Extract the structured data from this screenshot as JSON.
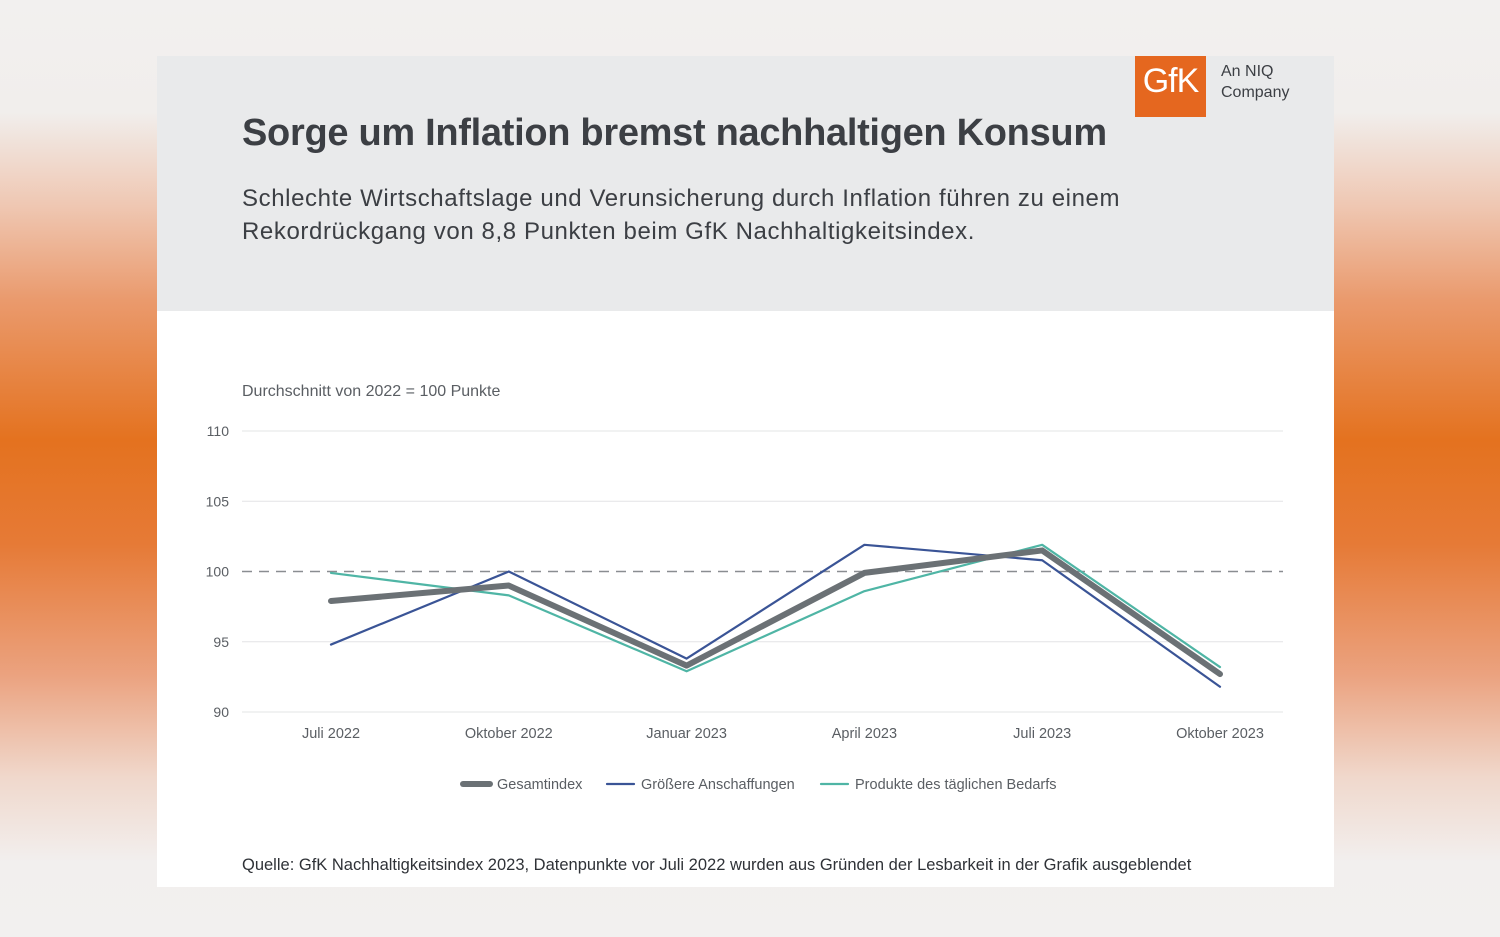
{
  "brand": {
    "logo_text": "GfK",
    "company_line1": "An NIQ",
    "company_line2": "Company",
    "accent_color": "#e5671f"
  },
  "header": {
    "title": "Sorge um Inflation bremst nachhaltigen Konsum",
    "subtitle": "Schlechte Wirtschaftslage und Verunsicherung durch Inflation führen zu einem Rekordrückgang von 8,8 Punkten beim GfK Nachhaltigkeitsindex."
  },
  "chart_data": {
    "type": "line",
    "title": "",
    "ylabel": "Durchschnitt von 2022 = 100 Punkte",
    "xlabel": "",
    "categories": [
      "Juli 2022",
      "Oktober 2022",
      "Januar 2023",
      "April 2023",
      "Juli 2023",
      "Oktober 2023"
    ],
    "yticks": [
      "110",
      "105",
      "100",
      "95",
      "90"
    ],
    "ylim": [
      90,
      110
    ],
    "reference_line": 100,
    "grid": true,
    "legend_position": "bottom",
    "series": [
      {
        "name": "Gesamtindex",
        "color": "#6b7175",
        "values": [
          97.9,
          99.0,
          93.3,
          99.9,
          101.5,
          92.7
        ]
      },
      {
        "name": "Größere Anschaffungen",
        "color": "#3a5496",
        "values": [
          94.8,
          100.0,
          93.8,
          101.9,
          100.8,
          91.8
        ]
      },
      {
        "name": "Produkte des täglichen Bedarfs",
        "color": "#4fb5a5",
        "values": [
          99.9,
          98.3,
          92.9,
          98.6,
          101.9,
          93.2
        ]
      }
    ]
  },
  "footer": {
    "source": "Quelle: GfK Nachhaltigkeitsindex 2023, Datenpunkte vor Juli 2022 wurden aus Gründen der Lesbarkeit in der Grafik ausgeblendet"
  }
}
